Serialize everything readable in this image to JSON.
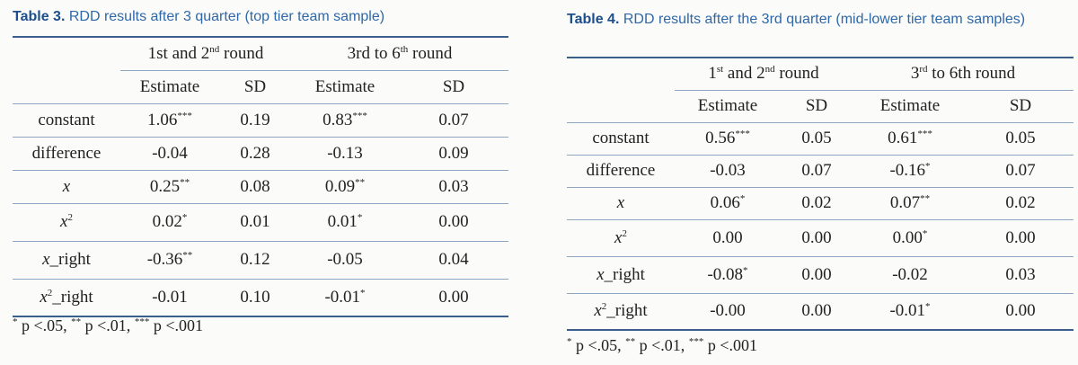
{
  "table3": {
    "label": "Table 3.",
    "title": "RDD results after 3 quarter (top tier team sample)",
    "group1": "1st and 2",
    "group1_sup": "nd",
    "group1_tail": " round",
    "group2": "3rd to 6",
    "group2_sup": "th",
    "group2_tail": " round",
    "col_estimate": "Estimate",
    "col_sd": "SD",
    "rows": [
      {
        "label": "constant",
        "e1": "1.06",
        "s1": "***",
        "sd1": "0.19",
        "e2": "0.83",
        "s2": "***",
        "sd2": "0.07"
      },
      {
        "label": "difference",
        "e1": "-0.04",
        "s1": "",
        "sd1": "0.28",
        "e2": "-0.13",
        "s2": "",
        "sd2": "0.09"
      },
      {
        "label": "x",
        "e1": "0.25",
        "s1": "**",
        "sd1": "0.08",
        "e2": "0.09",
        "s2": "**",
        "sd2": "0.03"
      },
      {
        "label": "x",
        "sup": "2",
        "e1": "0.02",
        "s1": "*",
        "sd1": "0.01",
        "e2": "0.01",
        "s2": "*",
        "sd2": "0.00"
      },
      {
        "label": "x",
        "suffix": "_right",
        "e1": "-0.36",
        "s1": "**",
        "sd1": "0.12",
        "e2": "-0.05",
        "s2": "",
        "sd2": "0.04"
      },
      {
        "label": "x",
        "sup": "2",
        "suffix": "_right",
        "e1": "-0.01",
        "s1": "",
        "sd1": "0.10",
        "e2": "-0.01",
        "s2": "*",
        "sd2": "0.00"
      }
    ],
    "note": {
      "m1": "*",
      "t1": " p <.05,  ",
      "m2": "**",
      "t2": " p <.01, ",
      "m3": "***",
      "t3": " p <.001"
    }
  },
  "table4": {
    "label": "Table 4.",
    "title": "RDD results after the 3rd quarter (mid-lower tier team samples)",
    "group1_pre": "1",
    "group1_sup1": "st",
    "group1_mid": " and 2",
    "group1_sup2": "nd",
    "group1_tail": " round",
    "group2_pre": "3",
    "group2_sup": "rd",
    "group2_tail": " to 6th round",
    "col_estimate": "Estimate",
    "col_sd": "SD",
    "rows": [
      {
        "label": "constant",
        "e1": "0.56",
        "s1": "***",
        "sd1": "0.05",
        "e2": "0.61",
        "s2": "***",
        "sd2": "0.05"
      },
      {
        "label": "difference",
        "e1": "-0.03",
        "s1": "",
        "sd1": "0.07",
        "e2": "-0.16",
        "s2": "*",
        "sd2": "0.07"
      },
      {
        "label": "x",
        "e1": "0.06",
        "s1": "*",
        "sd1": "0.02",
        "e2": "0.07",
        "s2": "**",
        "sd2": "0.02"
      },
      {
        "label": "x",
        "sup": "2",
        "e1": "0.00",
        "s1": "",
        "sd1": "0.00",
        "e2": "0.00",
        "s2": "*",
        "sd2": "0.00"
      },
      {
        "label": "x",
        "suffix": "_right",
        "e1": "-0.08",
        "s1": "*",
        "sd1": "0.00",
        "e2": "-0.02",
        "s2": "",
        "sd2": "0.03"
      },
      {
        "label": "x",
        "sup": "2",
        "suffix": "_right",
        "e1": "-0.00",
        "s1": "",
        "sd1": "0.00",
        "e2": "-0.01",
        "s2": "*",
        "sd2": "0.00"
      }
    ],
    "note": {
      "m1": "*",
      "t1": " p <.05,  ",
      "m2": "**",
      "t2": " p <.01, ",
      "m3": "***",
      "t3": " p <.001"
    }
  },
  "colors": {
    "caption": "#2f68a8",
    "rule": "#3a5f8c",
    "thin_rule": "#8ea6c2"
  }
}
